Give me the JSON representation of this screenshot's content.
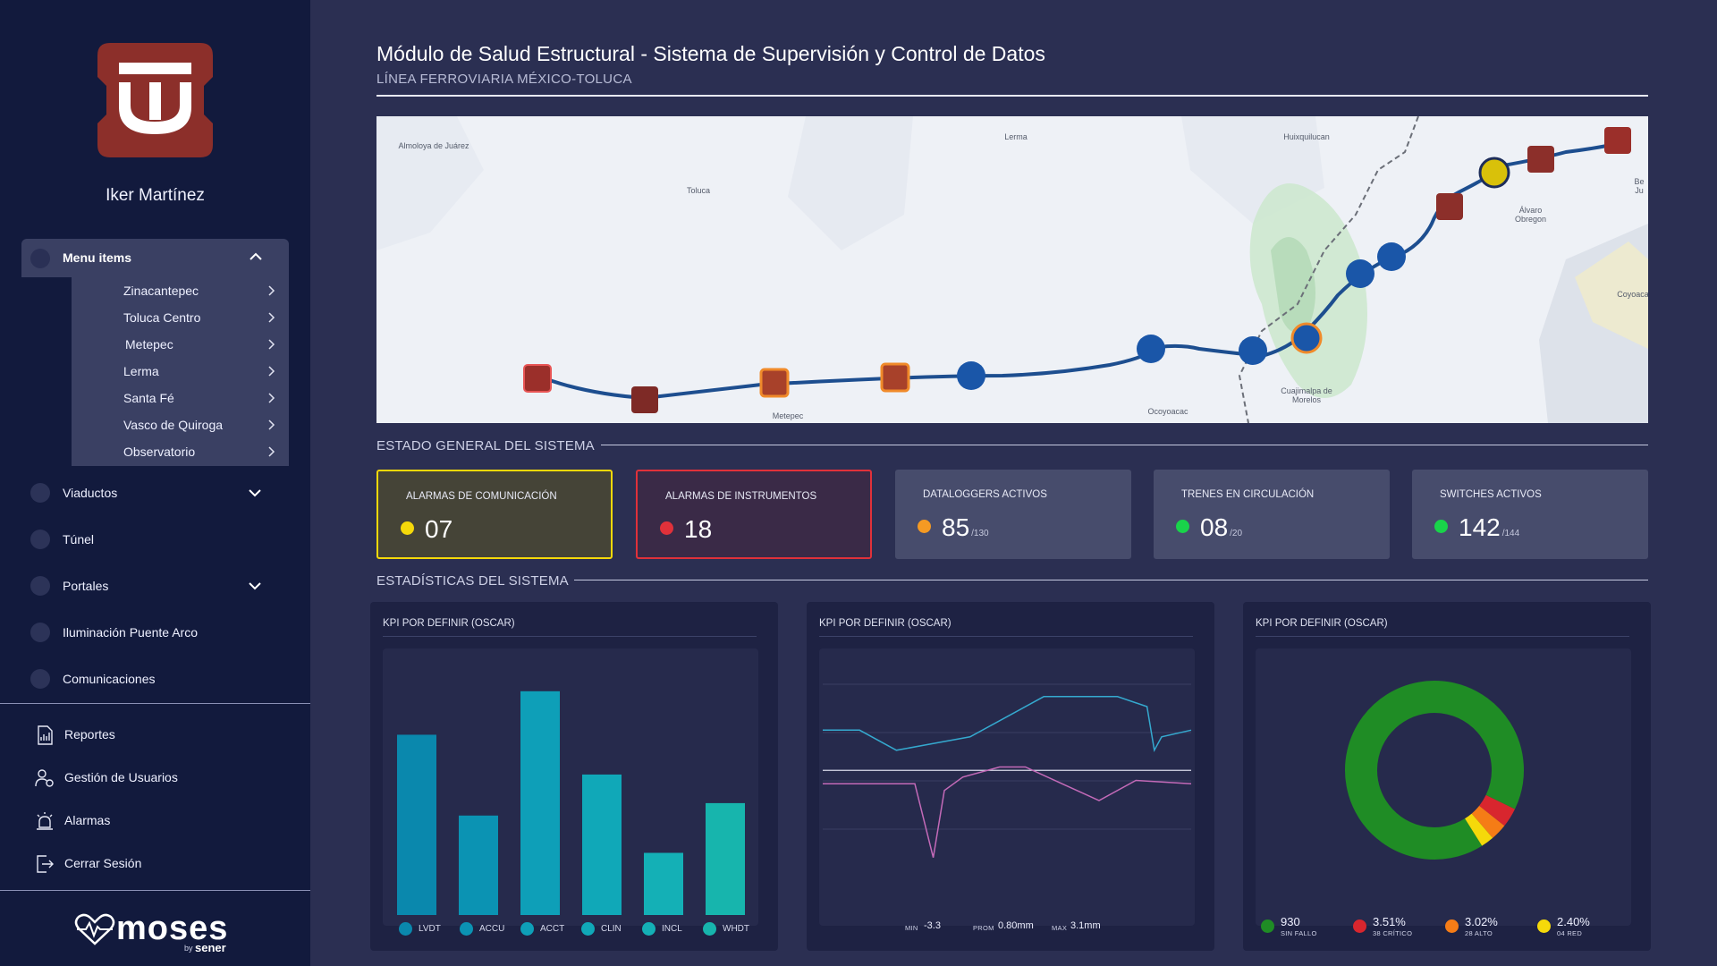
{
  "user": {
    "name": "Iker Martínez"
  },
  "menu": {
    "header": "Menu items",
    "subitems": [
      "Zinacantepec",
      "Toluca Centro",
      "Metepec",
      "Lerma",
      "Santa Fé",
      "Vasco de Quiroga",
      "Observatorio"
    ],
    "items": [
      {
        "label": "Viaductos",
        "expandable": true
      },
      {
        "label": "Túnel",
        "expandable": false
      },
      {
        "label": "Portales",
        "expandable": true
      },
      {
        "label": "Iluminación Puente Arco",
        "expandable": false
      },
      {
        "label": "Comunicaciones",
        "expandable": false
      }
    ],
    "utilities": [
      {
        "label": "Reportes",
        "icon": "report-icon"
      },
      {
        "label": "Gestión de Usuarios",
        "icon": "users-icon"
      },
      {
        "label": "Alarmas",
        "icon": "alarm-icon"
      },
      {
        "label": "Cerrar Sesión",
        "icon": "logout-icon"
      }
    ]
  },
  "brand": {
    "name": "moses",
    "by": "by",
    "company": "sener"
  },
  "header": {
    "title": "Módulo de Salud Estructural - Sistema de Supervisión y Control de Datos",
    "subtitle": "LÍNEA FERROVIARIA MÉXICO-TOLUCA"
  },
  "map": {
    "labels": [
      "Almoloya de Juárez",
      "Toluca",
      "Lerma",
      "Huixquilucan",
      "Álvaro Obregon",
      "Coyoaca",
      "Be Ju",
      "Metepec",
      "Ocoyoacac",
      "Cuajimalpa de Morelos"
    ]
  },
  "status": {
    "section_title": "ESTADO GENERAL DEL SISTEMA",
    "cards": [
      {
        "label": "ALARMAS DE COMUNICACIÓN",
        "value": "07",
        "total": "",
        "color": "#f5d90a"
      },
      {
        "label": "ALARMAS DE INSTRUMENTOS",
        "value": "18",
        "total": "",
        "color": "#e0313a"
      },
      {
        "label": "DATALOGGERS ACTIVOS",
        "value": "85",
        "total": "/130",
        "color": "#f59a23"
      },
      {
        "label": "TRENES EN CIRCULACIÓN",
        "value": "08",
        "total": "/20",
        "color": "#19d34a"
      },
      {
        "label": "SWITCHES ACTIVOS",
        "value": "142",
        "total": "/144",
        "color": "#19d34a"
      }
    ]
  },
  "stats": {
    "section_title": "ESTADÍSTICAS DEL SISTEMA",
    "panel_titles": [
      "KPI POR DEFINIR (OSCAR)",
      "KPI POR DEFINIR (OSCAR)",
      "KPI POR DEFINIR (OSCAR)"
    ],
    "line_stats": {
      "min_label": "MIN",
      "min": "-3.3",
      "avg_label": "PROM",
      "avg": "0.80mm",
      "max_label": "MAX",
      "max": "3.1mm"
    },
    "donut_legend": [
      {
        "value": "930",
        "sub": "SIN FALLO",
        "color": "#1f8c25"
      },
      {
        "value": "3.51%",
        "sub": "38 CRÍTICO",
        "color": "#d8262e"
      },
      {
        "value": "3.02%",
        "sub": "28 ALTO",
        "color": "#f57c16"
      },
      {
        "value": "2.40%",
        "sub": "04 RED",
        "color": "#f5d90a"
      }
    ]
  },
  "chart_data": [
    {
      "type": "bar",
      "categories": [
        "LVDT",
        "ACCU",
        "ACCT",
        "CLIN",
        "INCL",
        "WHDT"
      ],
      "values": [
        145,
        80,
        180,
        113,
        50,
        90
      ],
      "ylim": [
        0,
        200
      ],
      "colors": [
        "#0a88ad",
        "#0b93b3",
        "#0e9fb8",
        "#10a8b8",
        "#14b0b6",
        "#17b5ad"
      ]
    },
    {
      "type": "line",
      "series": [
        {
          "x": [
            0,
            10,
            20,
            30,
            40,
            50,
            60,
            70,
            80,
            88,
            90,
            92,
            100
          ],
          "values": [
            1.2,
            1.2,
            0.6,
            0.8,
            1.0,
            1.6,
            2.2,
            2.2,
            2.2,
            1.9,
            0.6,
            1.0,
            1.2
          ],
          "color": "#35a9cf"
        },
        {
          "x": [
            0,
            10,
            25,
            30,
            33,
            38,
            48,
            55,
            65,
            75,
            85,
            100
          ],
          "values": [
            -0.4,
            -0.4,
            -0.4,
            -2.6,
            -0.6,
            -0.2,
            0.1,
            0.1,
            -0.4,
            -0.9,
            -0.3,
            -0.4
          ],
          "color": "#c36ab8"
        }
      ],
      "ylim": [
        -3.3,
        3.1
      ]
    },
    {
      "type": "pie",
      "labels": [
        "SIN FALLO",
        "38 CRÍTICO",
        "28 ALTO",
        "04 RED"
      ],
      "values": [
        91.07,
        3.51,
        3.02,
        2.4
      ],
      "colors": [
        "#1f8c25",
        "#d8262e",
        "#f57c16",
        "#f5d90a"
      ]
    }
  ]
}
